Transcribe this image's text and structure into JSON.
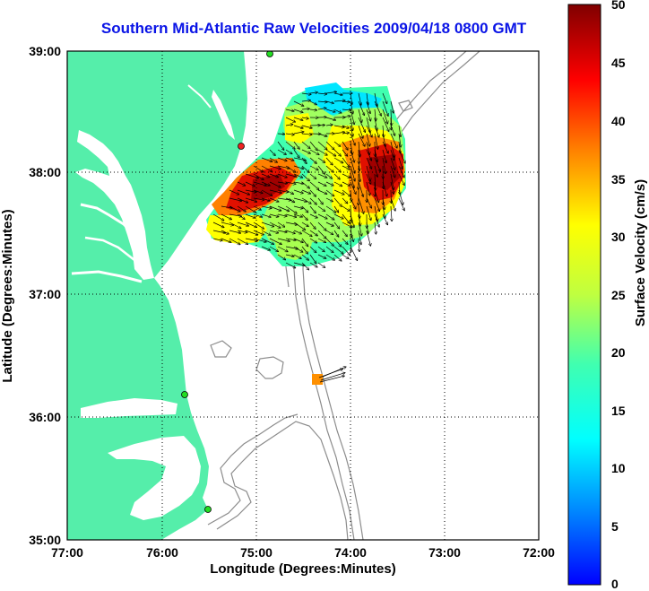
{
  "title": "Southern Mid-Atlantic Raw Velocities 2009/04/18 0800 GMT",
  "title_color": "#0a14e6",
  "xaxis": {
    "label": "Longitude (Degrees:Minutes)",
    "ticks": [
      "77:00",
      "76:00",
      "75:00",
      "74:00",
      "73:00",
      "72:00"
    ]
  },
  "yaxis": {
    "label": "Latitude (Degrees:Minutes)",
    "ticks": [
      "39:00",
      "38:00",
      "37:00",
      "36:00",
      "35:00"
    ]
  },
  "colorbar": {
    "label": "Surface Velocity (cm/s)",
    "ticks": [
      "50",
      "45",
      "40",
      "35",
      "30",
      "25",
      "20",
      "15",
      "10",
      "5",
      "0"
    ]
  },
  "colors": {
    "land": "#55eeaa",
    "ocean": "#ffffff",
    "bathymetry": "#8c8c8c",
    "station_active": "#22dd22",
    "station_inactive": "#ee2222"
  }
}
